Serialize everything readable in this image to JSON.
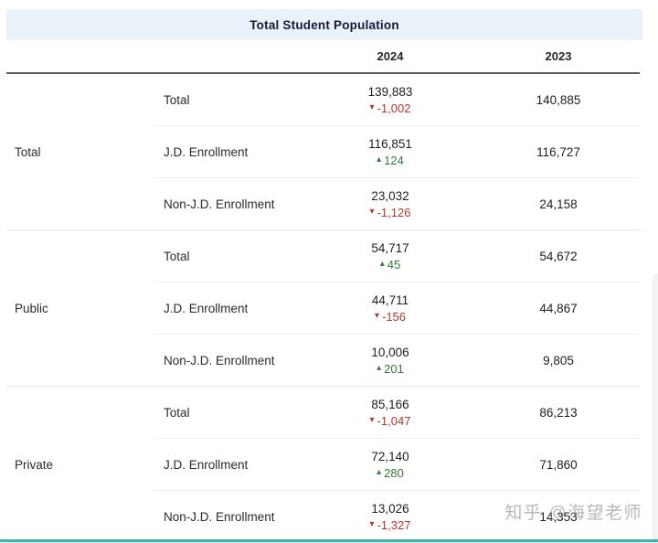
{
  "header": {
    "title": "Total Student Population"
  },
  "watermark": {
    "text": "知乎 @海望老师"
  },
  "colors": {
    "title_band_bg": "#e9f2f8",
    "positive_change": "#2e7d32",
    "negative_change": "#b4372b",
    "header_rule": "#595a5f",
    "bottom_accent_bar": "#3fb4ab"
  },
  "chart_data": {
    "type": "table",
    "title": "Total Student Population",
    "columns": [
      "2024",
      "2023"
    ],
    "row_labels": [
      "Total",
      "J.D. Enrollment",
      "Non-J.D. Enrollment"
    ],
    "groups": [
      {
        "label": "Total",
        "rows": [
          {
            "label": "Total",
            "v2024": "139,883",
            "change": "-1,002",
            "direction": "down",
            "v2023": "140,885"
          },
          {
            "label": "J.D. Enrollment",
            "v2024": "116,851",
            "change": "124",
            "direction": "up",
            "v2023": "116,727"
          },
          {
            "label": "Non-J.D. Enrollment",
            "v2024": "23,032",
            "change": "-1,126",
            "direction": "down",
            "v2023": "24,158"
          }
        ]
      },
      {
        "label": "Public",
        "rows": [
          {
            "label": "Total",
            "v2024": "54,717",
            "change": "45",
            "direction": "up",
            "v2023": "54,672"
          },
          {
            "label": "J.D. Enrollment",
            "v2024": "44,711",
            "change": "-156",
            "direction": "down",
            "v2023": "44,867"
          },
          {
            "label": "Non-J.D. Enrollment",
            "v2024": "10,006",
            "change": "201",
            "direction": "up",
            "v2023": "9,805"
          }
        ]
      },
      {
        "label": "Private",
        "rows": [
          {
            "label": "Total",
            "v2024": "85,166",
            "change": "-1,047",
            "direction": "down",
            "v2023": "86,213"
          },
          {
            "label": "J.D. Enrollment",
            "v2024": "72,140",
            "change": "280",
            "direction": "up",
            "v2023": "71,860"
          },
          {
            "label": "Non-J.D. Enrollment",
            "v2024": "13,026",
            "change": "-1,327",
            "direction": "down",
            "v2023": "14,353"
          }
        ]
      }
    ]
  }
}
